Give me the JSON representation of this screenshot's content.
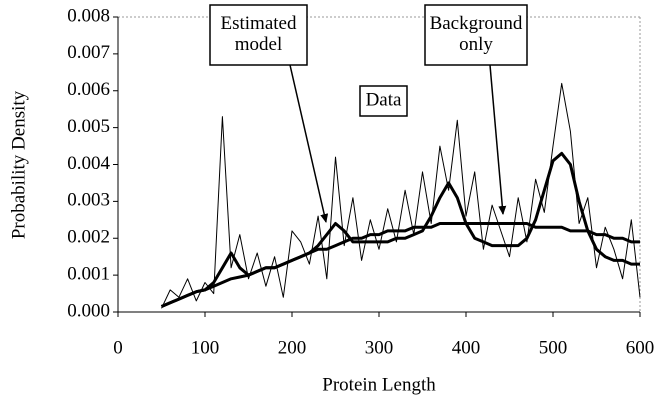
{
  "chart_data": {
    "type": "line",
    "x_label": "Protein Length",
    "y_label": "Probability Density",
    "x": [
      50,
      60,
      70,
      80,
      90,
      100,
      110,
      120,
      130,
      140,
      150,
      160,
      170,
      180,
      190,
      200,
      210,
      220,
      230,
      240,
      250,
      260,
      270,
      280,
      290,
      300,
      310,
      320,
      330,
      340,
      350,
      360,
      370,
      380,
      390,
      400,
      410,
      420,
      430,
      440,
      450,
      460,
      470,
      480,
      490,
      500,
      510,
      520,
      530,
      540,
      550,
      560,
      570,
      580,
      590,
      600
    ],
    "series": [
      {
        "name": "Data",
        "color": "#000000",
        "values": [
          0.0001,
          0.0006,
          0.0004,
          0.0009,
          0.0003,
          0.0008,
          0.0005,
          0.0053,
          0.0012,
          0.0021,
          0.0009,
          0.0016,
          0.0007,
          0.0015,
          0.0004,
          0.0022,
          0.0019,
          0.0013,
          0.0026,
          0.0009,
          0.0042,
          0.0018,
          0.0031,
          0.0014,
          0.0025,
          0.0017,
          0.0028,
          0.0019,
          0.0033,
          0.0021,
          0.0038,
          0.0024,
          0.0045,
          0.0033,
          0.0052,
          0.0026,
          0.0038,
          0.0017,
          0.0029,
          0.0022,
          0.0015,
          0.0031,
          0.0019,
          0.0036,
          0.0027,
          0.0045,
          0.0062,
          0.0049,
          0.0024,
          0.0031,
          0.0012,
          0.0023,
          0.0017,
          0.0009,
          0.0025,
          0.0004
        ]
      },
      {
        "name": "Estimated model",
        "color": "#000000",
        "values": [
          0.00015,
          0.00025,
          0.00035,
          0.00045,
          0.00055,
          0.0006,
          0.0008,
          0.0012,
          0.0016,
          0.0012,
          0.001,
          0.0011,
          0.0012,
          0.0012,
          0.0013,
          0.0014,
          0.0015,
          0.0016,
          0.0018,
          0.0021,
          0.0024,
          0.0022,
          0.0019,
          0.0019,
          0.0019,
          0.0019,
          0.0019,
          0.002,
          0.002,
          0.0021,
          0.0022,
          0.0026,
          0.0031,
          0.0035,
          0.0031,
          0.0024,
          0.002,
          0.0019,
          0.0018,
          0.0018,
          0.0018,
          0.0018,
          0.002,
          0.0025,
          0.0033,
          0.0041,
          0.0043,
          0.004,
          0.003,
          0.0022,
          0.0017,
          0.0015,
          0.0014,
          0.0014,
          0.0013,
          0.0013
        ]
      },
      {
        "name": "Background only",
        "color": "#000000",
        "values": [
          0.00015,
          0.00025,
          0.00035,
          0.00045,
          0.00055,
          0.0006,
          0.0007,
          0.0008,
          0.0009,
          0.00095,
          0.001,
          0.0011,
          0.0012,
          0.0012,
          0.0013,
          0.0014,
          0.0015,
          0.0016,
          0.0017,
          0.0017,
          0.0018,
          0.0019,
          0.002,
          0.002,
          0.0021,
          0.0021,
          0.0022,
          0.0022,
          0.0022,
          0.0023,
          0.0023,
          0.0023,
          0.0024,
          0.0024,
          0.0024,
          0.0024,
          0.0024,
          0.0024,
          0.0024,
          0.0024,
          0.0024,
          0.0024,
          0.0024,
          0.0023,
          0.0023,
          0.0023,
          0.0023,
          0.0022,
          0.0022,
          0.0022,
          0.0021,
          0.0021,
          0.002,
          0.002,
          0.0019,
          0.0019
        ]
      }
    ],
    "xlim": [
      0,
      600
    ],
    "xticks": [
      0,
      100,
      200,
      300,
      400,
      500,
      600
    ],
    "ylim": [
      0,
      0.008
    ],
    "yticks": [
      {
        "value": 0,
        "label": "0.000"
      },
      {
        "value": 0.001,
        "label": "0.001"
      },
      {
        "value": 0.002,
        "label": "0.002"
      },
      {
        "value": 0.003,
        "label": "0.003"
      },
      {
        "value": 0.004,
        "label": "0.004"
      },
      {
        "value": 0.005,
        "label": "0.005"
      },
      {
        "value": 0.006,
        "label": "0.006"
      },
      {
        "value": 0.007,
        "label": "0.007"
      },
      {
        "value": 0.008,
        "label": "0.008"
      }
    ],
    "annotations": [
      {
        "lines": [
          "Estimated",
          "model"
        ]
      },
      {
        "lines": [
          "Background",
          "only"
        ]
      },
      {
        "lines": [
          "Data"
        ]
      }
    ]
  }
}
